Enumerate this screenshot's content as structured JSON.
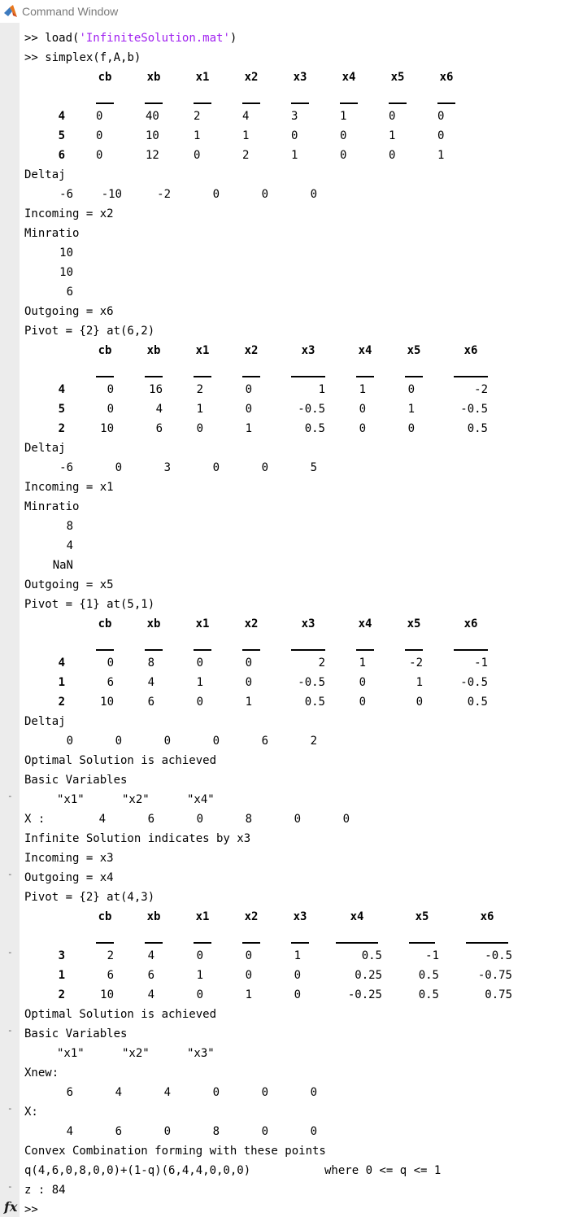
{
  "window": {
    "title": "Command Window"
  },
  "prompt": ">>",
  "cmd1": {
    "prefix": "load(",
    "arg": "'InfiniteSolution.mat'",
    "suffix": ")"
  },
  "cmd2": "simplex(f,A,b)",
  "fx_label": "fx",
  "labels": {
    "deltaj": "Deltaj",
    "minratio": "Minratio",
    "optimal": "Optimal Solution is achieved",
    "basic": "Basic Variables",
    "x_colon": "X :",
    "x_colon2": "X:",
    "infinite": "Infinite Solution indicates by x3",
    "xnew": "Xnew:",
    "convex": "Convex Combination forming with these points",
    "combo": "q(4,6,0,8,0,0)+(1-q)(6,4,4,0,0,0)",
    "where": "where 0 <= q <= 1",
    "z": "z : 84"
  },
  "header": [
    "cb",
    "xb",
    "x1",
    "x2",
    "x3",
    "x4",
    "x5",
    "x6"
  ],
  "tables": [
    {
      "rows": [
        {
          "bv": "4",
          "cells": [
            "0",
            "40",
            "2",
            "4",
            "3",
            "1",
            "0",
            "0"
          ]
        },
        {
          "bv": "5",
          "cells": [
            "0",
            "10",
            "1",
            "1",
            "0",
            "0",
            "1",
            "0"
          ]
        },
        {
          "bv": "6",
          "cells": [
            "0",
            "12",
            "0",
            "2",
            "1",
            "0",
            "0",
            "1"
          ]
        }
      ]
    },
    {
      "rows": [
        {
          "bv": "4",
          "cells": [
            "0",
            "16",
            "2",
            "0",
            "1",
            "1",
            "0",
            "-2"
          ]
        },
        {
          "bv": "5",
          "cells": [
            "0",
            "4",
            "1",
            "0",
            "-0.5",
            "0",
            "1",
            "-0.5"
          ]
        },
        {
          "bv": "2",
          "cells": [
            "10",
            "6",
            "0",
            "1",
            "0.5",
            "0",
            "0",
            "0.5"
          ]
        }
      ]
    },
    {
      "rows": [
        {
          "bv": "4",
          "cells": [
            "0",
            "8",
            "0",
            "0",
            "2",
            "1",
            "-2",
            "-1"
          ]
        },
        {
          "bv": "1",
          "cells": [
            "6",
            "4",
            "1",
            "0",
            "-0.5",
            "0",
            "1",
            "-0.5"
          ]
        },
        {
          "bv": "2",
          "cells": [
            "10",
            "6",
            "0",
            "1",
            "0.5",
            "0",
            "0",
            "0.5"
          ]
        }
      ]
    },
    {
      "rows": [
        {
          "bv": "3",
          "cells": [
            "2",
            "4",
            "0",
            "0",
            "1",
            "0.5",
            "-1",
            "-0.5"
          ]
        },
        {
          "bv": "1",
          "cells": [
            "6",
            "6",
            "1",
            "0",
            "0",
            "0.25",
            "0.5",
            "-0.75"
          ]
        },
        {
          "bv": "2",
          "cells": [
            "10",
            "4",
            "0",
            "1",
            "0",
            "-0.25",
            "0.5",
            "0.75"
          ]
        }
      ]
    }
  ],
  "deltaj": [
    [
      "-6",
      "-10",
      "-2",
      "0",
      "0",
      "0"
    ],
    [
      "-6",
      "0",
      "3",
      "0",
      "0",
      "5"
    ],
    [
      "0",
      "0",
      "0",
      "0",
      "6",
      "2"
    ]
  ],
  "minratio": [
    [
      "10",
      "10",
      "6"
    ],
    [
      "8",
      "4",
      "NaN"
    ]
  ],
  "iterations": [
    {
      "incoming": "Incoming = x2",
      "outgoing": "Outgoing = x6",
      "pivot": "Pivot = {2} at(6,2)"
    },
    {
      "incoming": "Incoming = x1",
      "outgoing": "Outgoing = x5",
      "pivot": "Pivot = {1} at(5,1)"
    },
    {
      "incoming": "Incoming = x3",
      "outgoing": "Outgoing = x4",
      "pivot": "Pivot = {2} at(4,3)"
    }
  ],
  "basic_vars": [
    [
      "\"x1\"",
      "\"x2\"",
      "\"x4\""
    ],
    [
      "\"x1\"",
      "\"x2\"",
      "\"x3\""
    ]
  ],
  "x_values": [
    "4",
    "6",
    "0",
    "8",
    "0",
    "0"
  ],
  "xnew_values": [
    "6",
    "4",
    "4",
    "0",
    "0",
    "0"
  ],
  "x_values2": [
    "4",
    "6",
    "0",
    "8",
    "0",
    "0"
  ]
}
